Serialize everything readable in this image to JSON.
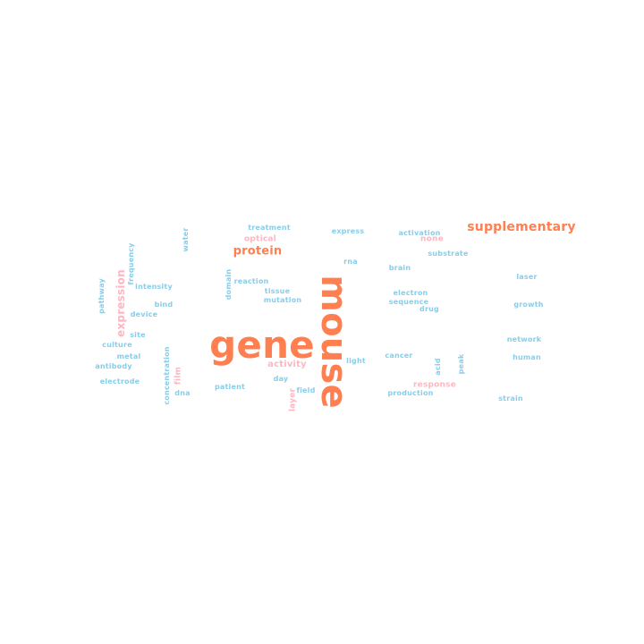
{
  "palette": {
    "blue": "#87ceeb",
    "pink": "#ffb6c1",
    "orange": "#ff7f50"
  },
  "words": [
    {
      "text": "gene",
      "color": "orange"
    },
    {
      "text": "mouse",
      "color": "orange"
    },
    {
      "text": "supplementary",
      "color": "orange"
    },
    {
      "text": "protein",
      "color": "orange"
    },
    {
      "text": "expression",
      "color": "pink"
    },
    {
      "text": "optical",
      "color": "pink"
    },
    {
      "text": "none",
      "color": "pink"
    },
    {
      "text": "activity",
      "color": "pink"
    },
    {
      "text": "film",
      "color": "pink"
    },
    {
      "text": "response",
      "color": "pink"
    },
    {
      "text": "layer",
      "color": "pink"
    },
    {
      "text": "treatment",
      "color": "blue"
    },
    {
      "text": "express",
      "color": "blue"
    },
    {
      "text": "activation",
      "color": "blue"
    },
    {
      "text": "water",
      "color": "blue"
    },
    {
      "text": "substrate",
      "color": "blue"
    },
    {
      "text": "frequency",
      "color": "blue"
    },
    {
      "text": "rna",
      "color": "blue"
    },
    {
      "text": "brain",
      "color": "blue"
    },
    {
      "text": "domain",
      "color": "blue"
    },
    {
      "text": "reaction",
      "color": "blue"
    },
    {
      "text": "laser",
      "color": "blue"
    },
    {
      "text": "intensity",
      "color": "blue"
    },
    {
      "text": "pathway",
      "color": "blue"
    },
    {
      "text": "tissue",
      "color": "blue"
    },
    {
      "text": "electron",
      "color": "blue"
    },
    {
      "text": "bind",
      "color": "blue"
    },
    {
      "text": "mutation",
      "color": "blue"
    },
    {
      "text": "sequence",
      "color": "blue"
    },
    {
      "text": "growth",
      "color": "blue"
    },
    {
      "text": "device",
      "color": "blue"
    },
    {
      "text": "drug",
      "color": "blue"
    },
    {
      "text": "site",
      "color": "blue"
    },
    {
      "text": "network",
      "color": "blue"
    },
    {
      "text": "culture",
      "color": "blue"
    },
    {
      "text": "metal",
      "color": "blue"
    },
    {
      "text": "concentration",
      "color": "blue"
    },
    {
      "text": "light",
      "color": "blue"
    },
    {
      "text": "cancer",
      "color": "blue"
    },
    {
      "text": "human",
      "color": "blue"
    },
    {
      "text": "antibody",
      "color": "blue"
    },
    {
      "text": "acid",
      "color": "blue"
    },
    {
      "text": "peak",
      "color": "blue"
    },
    {
      "text": "day",
      "color": "blue"
    },
    {
      "text": "electrode",
      "color": "blue"
    },
    {
      "text": "patient",
      "color": "blue"
    },
    {
      "text": "field",
      "color": "blue"
    },
    {
      "text": "dna",
      "color": "blue"
    },
    {
      "text": "production",
      "color": "blue"
    },
    {
      "text": "strain",
      "color": "blue"
    }
  ]
}
